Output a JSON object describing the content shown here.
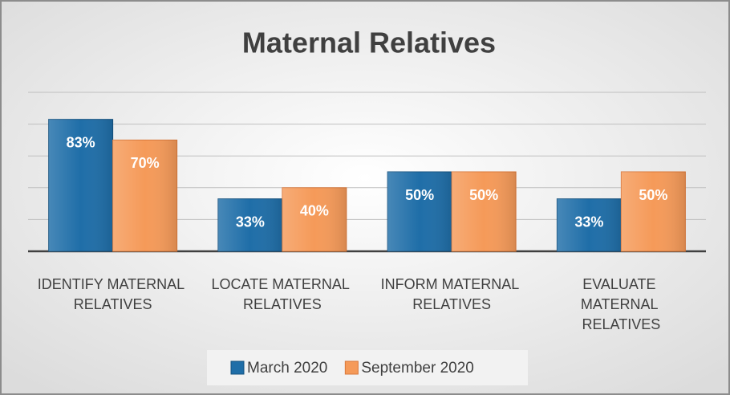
{
  "chart_data": {
    "type": "bar",
    "title": "Maternal Relatives",
    "categories": [
      "IDENTIFY MATERNAL RELATIVES",
      "LOCATE MATERNAL RELATIVES",
      "INFORM MATERNAL RELATIVES",
      "EVALUATE MATERNAL RELATIVES"
    ],
    "series": [
      {
        "name": "March 2020",
        "color": "#1f6ea8",
        "values": [
          83,
          33,
          50,
          33
        ],
        "value_labels": [
          "83%",
          "33%",
          "50%",
          "33%"
        ]
      },
      {
        "name": "September 2020",
        "color": "#f59a59",
        "values": [
          70,
          40,
          50,
          50
        ],
        "value_labels": [
          "70%",
          "40%",
          "50%",
          "50%"
        ]
      }
    ],
    "ylim": [
      0,
      100
    ],
    "yticks": [
      0,
      20,
      40,
      60,
      80,
      100
    ],
    "grid": true,
    "legend": "bottom"
  }
}
